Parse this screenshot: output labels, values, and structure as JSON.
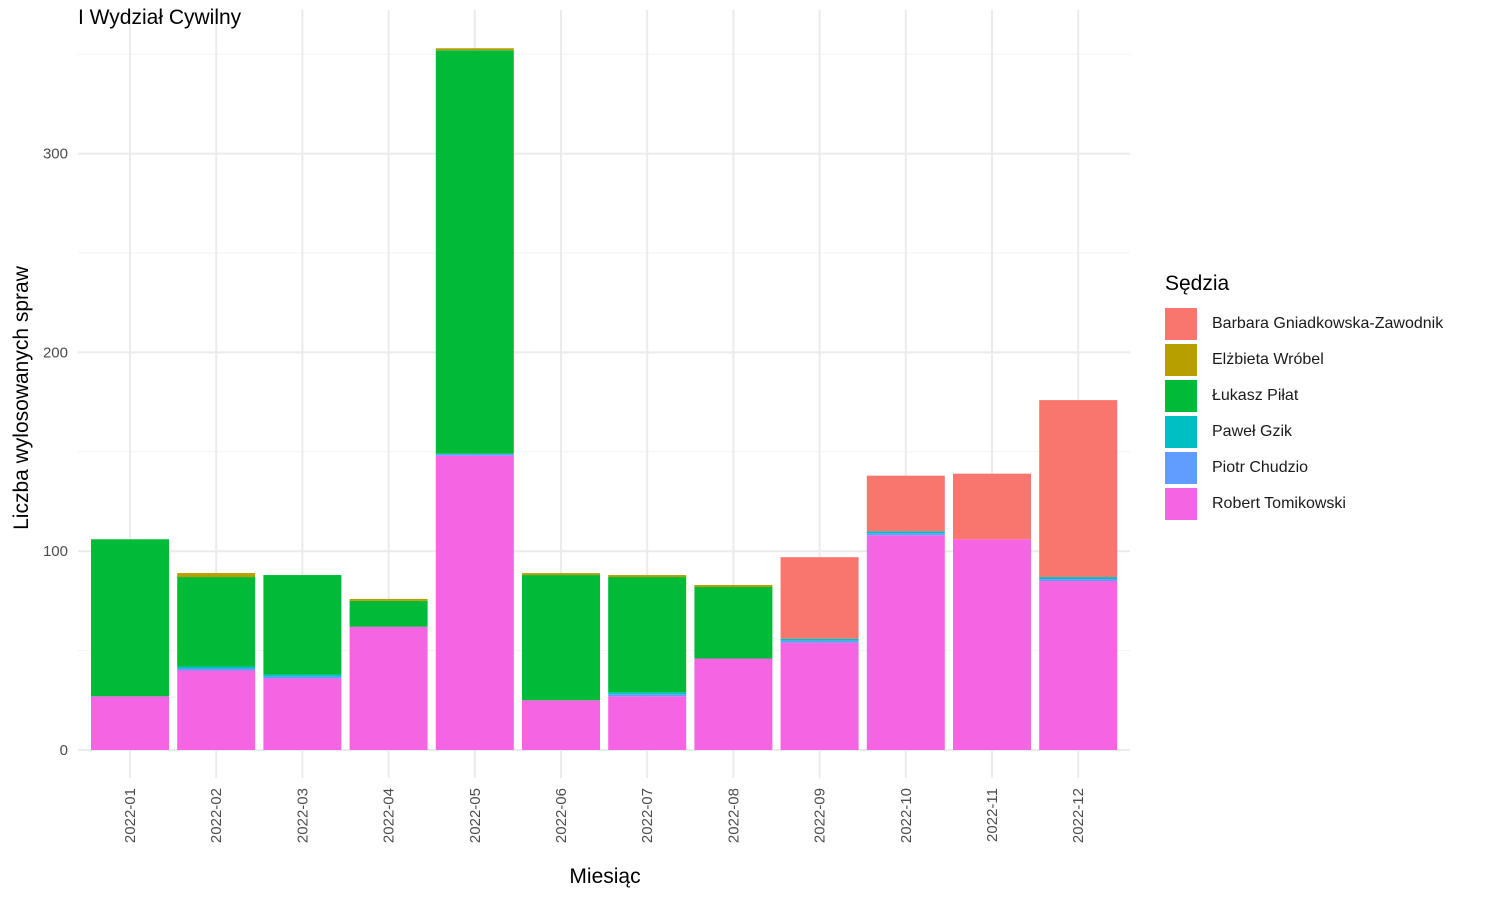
{
  "chart_data": {
    "type": "bar",
    "stacked": true,
    "title": "I Wydział Cywilny",
    "xlabel": "Miesiąc",
    "ylabel": "Liczba wylosowanych spraw",
    "ylim": [
      -14,
      365
    ],
    "yticks": [
      0,
      100,
      200,
      300
    ],
    "grid": true,
    "legend_title": "Sędzia",
    "legend_position": "right",
    "categories": [
      "2022-01",
      "2022-02",
      "2022-03",
      "2022-04",
      "2022-05",
      "2022-06",
      "2022-07",
      "2022-08",
      "2022-09",
      "2022-10",
      "2022-11",
      "2022-12"
    ],
    "series": [
      {
        "name": "Barbara Gniadkowska-Zawodnik",
        "color": "#F8766D",
        "values": [
          0,
          0,
          0,
          0,
          0,
          0,
          0,
          0,
          41,
          28,
          33,
          89
        ]
      },
      {
        "name": "Elżbieta Wróbel",
        "color": "#B79F00",
        "values": [
          0,
          2,
          0,
          1,
          1,
          1,
          1,
          1,
          0,
          0,
          0,
          0
        ]
      },
      {
        "name": "Łukasz Piłat",
        "color": "#00BA38",
        "values": [
          79,
          45,
          50,
          13,
          203,
          63,
          58,
          36,
          0,
          0,
          0,
          0
        ]
      },
      {
        "name": "Paweł Gzik",
        "color": "#00BFC4",
        "values": [
          0,
          1,
          1,
          0,
          0,
          0,
          1,
          0,
          1,
          1,
          0,
          1
        ]
      },
      {
        "name": "Piotr Chudzio",
        "color": "#619CFF",
        "values": [
          0,
          1,
          1,
          0,
          1,
          0,
          1,
          0,
          1,
          1,
          0,
          1
        ]
      },
      {
        "name": "Robert Tomikowski",
        "color": "#F564E3",
        "values": [
          27,
          40,
          36,
          62,
          148,
          25,
          27,
          46,
          54,
          108,
          106,
          85
        ]
      }
    ]
  }
}
